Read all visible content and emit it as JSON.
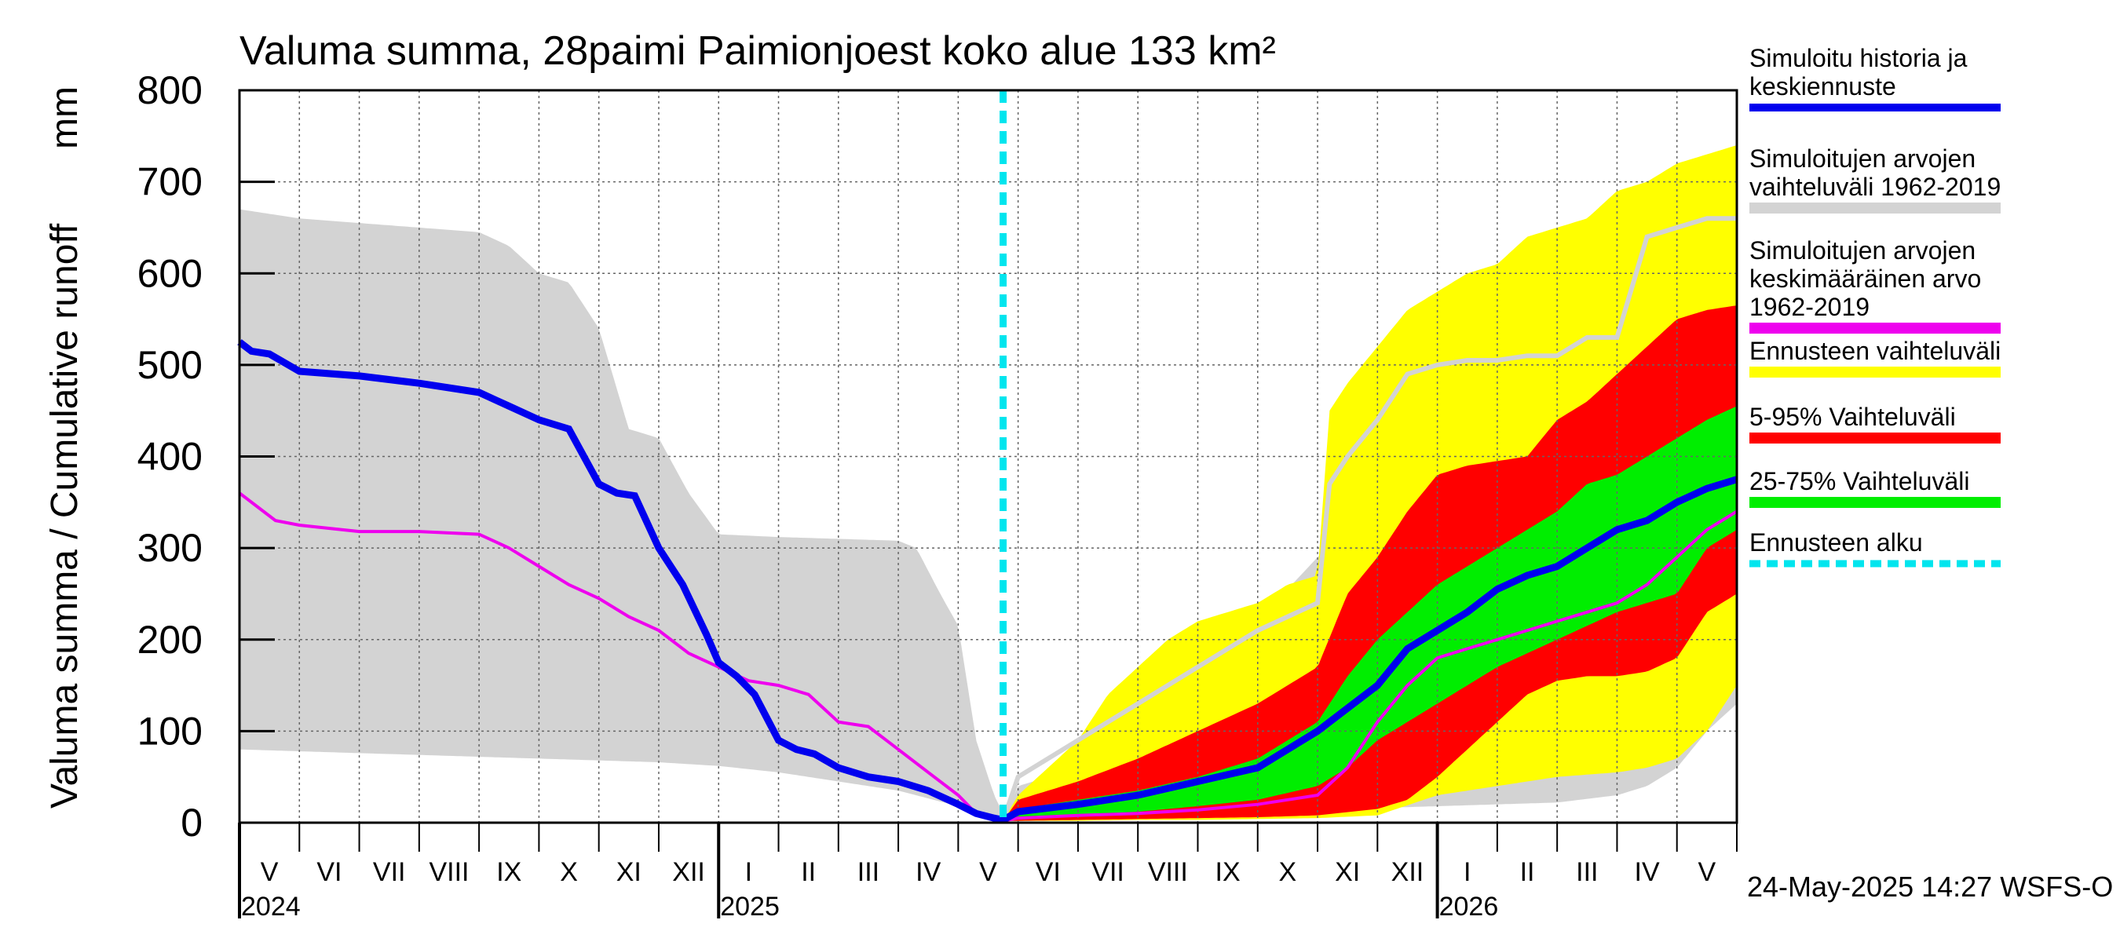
{
  "chart_data": {
    "type": "area",
    "title": "Valuma summa, 28paimi Paimionjoest koko alue 133 km²",
    "ylabel_fi": "Valuma summa / Cumulative runoff",
    "ylabel_unit": "mm",
    "ylim": [
      0,
      800
    ],
    "y_ticks": [
      0,
      100,
      200,
      300,
      400,
      500,
      600,
      700,
      800
    ],
    "x_start_month_index": 0,
    "x_end_month_index": 25,
    "month_labels": [
      "V",
      "VI",
      "VII",
      "VIII",
      "IX",
      "X",
      "XI",
      "XII",
      "I",
      "II",
      "III",
      "IV",
      "V",
      "VI",
      "VII",
      "VIII",
      "IX",
      "X",
      "XI",
      "XII",
      "I",
      "II",
      "III",
      "IV",
      "V"
    ],
    "year_labels": [
      {
        "label": "2024",
        "month_index": 0
      },
      {
        "label": "2025",
        "month_index": 8
      },
      {
        "label": "2026",
        "month_index": 20
      }
    ],
    "forecast_start_month_index": 12.75,
    "legend": [
      {
        "label": "Simuloitu historia ja keskiennuste",
        "lines": [
          "Simuloitu historia ja",
          "keskiennuste"
        ],
        "color": "#0000ee",
        "style": "line"
      },
      {
        "label": "Simuloitujen arvojen vaihteluväli 1962-2019",
        "lines": [
          "Simuloitujen arvojen",
          "vaihteluväli 1962-2019"
        ],
        "color": "#d3d3d3",
        "style": "line"
      },
      {
        "label": "Simuloitujen arvojen keskimääräinen arvo 1962-2019",
        "lines": [
          "Simuloitujen arvojen",
          "keskimääräinen arvo",
          "   1962-2019"
        ],
        "color": "#ee00ee",
        "style": "line"
      },
      {
        "label": "Ennusteen vaihteluväli",
        "lines": [
          "Ennusteen vaihteluväli"
        ],
        "color": "#ffff00",
        "style": "line"
      },
      {
        "label": "5-95% Vaihteluväli",
        "lines": [
          "5-95% Vaihteluväli"
        ],
        "color": "#ff0000",
        "style": "line"
      },
      {
        "label": "25-75% Vaihteluväli",
        "lines": [
          "25-75% Vaihteluväli"
        ],
        "color": "#00ee00",
        "style": "line"
      },
      {
        "label": "Ennusteen alku",
        "lines": [
          "Ennusteen alku"
        ],
        "color": "#00e5ee",
        "style": "dashed"
      }
    ],
    "footer": "24-May-2025 14:27 WSFS-O",
    "series": [
      {
        "name": "hist_range_upper",
        "x": [
          0,
          1,
          2,
          3,
          4,
          4.5,
          5,
          5.5,
          6,
          6.5,
          7,
          7.5,
          8,
          9,
          10,
          11,
          11.3,
          11.7,
          12,
          12.3,
          12.6,
          12.75
        ],
        "y": [
          670,
          660,
          655,
          650,
          645,
          630,
          600,
          590,
          540,
          430,
          420,
          360,
          315,
          312,
          310,
          308,
          300,
          250,
          215,
          90,
          30,
          10
        ]
      },
      {
        "name": "hist_range_lower",
        "x": [
          0,
          1,
          2,
          3,
          4,
          5,
          6,
          7,
          8,
          9,
          10,
          11,
          12,
          12.5,
          12.75
        ],
        "y": [
          80,
          78,
          76,
          74,
          72,
          70,
          68,
          66,
          62,
          55,
          45,
          35,
          18,
          5,
          2
        ]
      },
      {
        "name": "sim_range_upper_future",
        "x": [
          12.75,
          13,
          14,
          15,
          16,
          17,
          18,
          19,
          19.5,
          20,
          20.5,
          21,
          21.5,
          22,
          22.5,
          23,
          23.5,
          24,
          24.5,
          25
        ],
        "y": [
          2,
          40,
          60,
          100,
          160,
          220,
          290,
          360,
          480,
          520,
          530,
          560,
          570,
          600,
          620,
          660,
          665,
          665,
          665,
          665
        ]
      },
      {
        "name": "sim_range_lower_future",
        "x": [
          12.75,
          13,
          14,
          15,
          16,
          17,
          18,
          19,
          20,
          21,
          22,
          23,
          23.5,
          24,
          24.5,
          25
        ],
        "y": [
          2,
          5,
          8,
          10,
          12,
          14,
          15,
          16,
          18,
          20,
          22,
          30,
          40,
          60,
          100,
          130
        ]
      },
      {
        "name": "forecast_range_upper",
        "x": [
          12.75,
          13,
          13.5,
          14,
          14.5,
          15,
          15.5,
          16,
          16.5,
          17,
          17.5,
          18,
          18.2,
          18.5,
          19,
          19.5,
          20,
          20.5,
          21,
          21.5,
          22,
          22.5,
          23,
          23.5,
          24,
          24.5,
          25
        ],
        "y": [
          2,
          30,
          60,
          90,
          140,
          170,
          200,
          220,
          230,
          240,
          260,
          270,
          450,
          480,
          520,
          560,
          580,
          600,
          610,
          640,
          650,
          660,
          690,
          700,
          720,
          730,
          740
        ]
      },
      {
        "name": "forecast_range_lower",
        "x": [
          12.75,
          13,
          14,
          15,
          16,
          17,
          18,
          19,
          20,
          21,
          22,
          23,
          23.5,
          24,
          24.5,
          25
        ],
        "y": [
          2,
          2,
          2,
          3,
          3,
          4,
          5,
          8,
          30,
          40,
          50,
          55,
          60,
          70,
          100,
          150
        ]
      },
      {
        "name": "p95",
        "x": [
          12.75,
          13,
          14,
          15,
          16,
          17,
          18,
          18.5,
          19,
          19.5,
          20,
          20.5,
          21,
          21.5,
          22,
          22.5,
          23,
          23.5,
          24,
          24.5,
          25
        ],
        "y": [
          2,
          25,
          45,
          70,
          100,
          130,
          170,
          250,
          290,
          340,
          380,
          390,
          395,
          400,
          440,
          460,
          490,
          520,
          550,
          560,
          565
        ]
      },
      {
        "name": "p75",
        "x": [
          12.75,
          13,
          14,
          15,
          16,
          17,
          18,
          18.5,
          19,
          19.5,
          20,
          20.5,
          21,
          21.5,
          22,
          22.5,
          23,
          23.5,
          24,
          24.5,
          25
        ],
        "y": [
          2,
          15,
          25,
          35,
          50,
          70,
          110,
          160,
          200,
          230,
          260,
          280,
          300,
          320,
          340,
          370,
          380,
          400,
          420,
          440,
          455
        ]
      },
      {
        "name": "p25",
        "x": [
          12.75,
          13,
          14,
          15,
          16,
          17,
          18,
          18.5,
          19,
          19.5,
          20,
          20.5,
          21,
          21.5,
          22,
          22.5,
          23,
          23.5,
          24,
          24.5,
          25
        ],
        "y": [
          2,
          5,
          8,
          12,
          18,
          25,
          40,
          60,
          90,
          110,
          130,
          150,
          170,
          185,
          200,
          215,
          230,
          240,
          250,
          300,
          320
        ]
      },
      {
        "name": "p5",
        "x": [
          12.75,
          13,
          14,
          15,
          16,
          17,
          18,
          19,
          19.5,
          20,
          20.5,
          21,
          21.5,
          22,
          22.5,
          23,
          23.5,
          24,
          24.5,
          25
        ],
        "y": [
          2,
          2,
          3,
          4,
          5,
          6,
          8,
          15,
          25,
          50,
          80,
          110,
          140,
          155,
          160,
          160,
          165,
          180,
          230,
          250
        ]
      },
      {
        "name": "mean_history_forecast",
        "x": [
          0,
          0.2,
          0.5,
          1,
          2,
          3,
          4,
          4.5,
          5,
          5.5,
          6,
          6.3,
          6.6,
          7,
          7.4,
          7.8,
          8,
          8.3,
          8.6,
          9,
          9.3,
          9.6,
          10,
          10.5,
          11,
          11.5,
          12,
          12.3,
          12.6,
          12.75,
          13,
          14,
          15,
          16,
          17,
          17.5,
          18,
          18.5,
          19,
          19.5,
          20,
          20.5,
          21,
          21.5,
          22,
          22.5,
          23,
          23.5,
          24,
          24.5,
          25
        ],
        "y": [
          525,
          515,
          512,
          493,
          488,
          480,
          470,
          455,
          440,
          430,
          370,
          360,
          357,
          300,
          260,
          205,
          175,
          160,
          140,
          90,
          80,
          75,
          60,
          50,
          45,
          35,
          20,
          10,
          5,
          3,
          12,
          20,
          30,
          45,
          60,
          80,
          100,
          125,
          150,
          190,
          210,
          230,
          255,
          270,
          280,
          300,
          320,
          330,
          350,
          365,
          375
        ]
      },
      {
        "name": "long_term_mean",
        "x": [
          0,
          0.3,
          0.6,
          1,
          2,
          3,
          4,
          4.5,
          5,
          5.5,
          6,
          6.5,
          7,
          7.5,
          8,
          8.5,
          9,
          9.5,
          10,
          10.5,
          11,
          11.5,
          12,
          12.3,
          12.75,
          13,
          14,
          15,
          16,
          17,
          18,
          18.5,
          19,
          19.5,
          20,
          20.5,
          21,
          21.5,
          22,
          22.5,
          23,
          23.5,
          24,
          24.5,
          25
        ],
        "y": [
          360,
          345,
          330,
          325,
          318,
          318,
          315,
          300,
          280,
          260,
          245,
          225,
          210,
          185,
          170,
          155,
          150,
          140,
          110,
          105,
          80,
          55,
          30,
          10,
          2,
          5,
          8,
          10,
          14,
          20,
          30,
          60,
          110,
          150,
          180,
          190,
          200,
          210,
          220,
          230,
          240,
          260,
          290,
          320,
          340
        ]
      },
      {
        "name": "sim_mean_future_upper_line",
        "x": [
          12.75,
          13,
          14,
          15,
          16,
          17,
          18,
          18.2,
          18.5,
          19,
          19.5,
          20,
          20.5,
          21,
          21.5,
          22,
          22.5,
          23,
          23.5,
          24,
          24.5,
          25
        ],
        "y": [
          2,
          50,
          90,
          130,
          170,
          210,
          240,
          370,
          400,
          440,
          490,
          500,
          505,
          505,
          510,
          510,
          530,
          530,
          640,
          650,
          660,
          660
        ]
      }
    ]
  }
}
